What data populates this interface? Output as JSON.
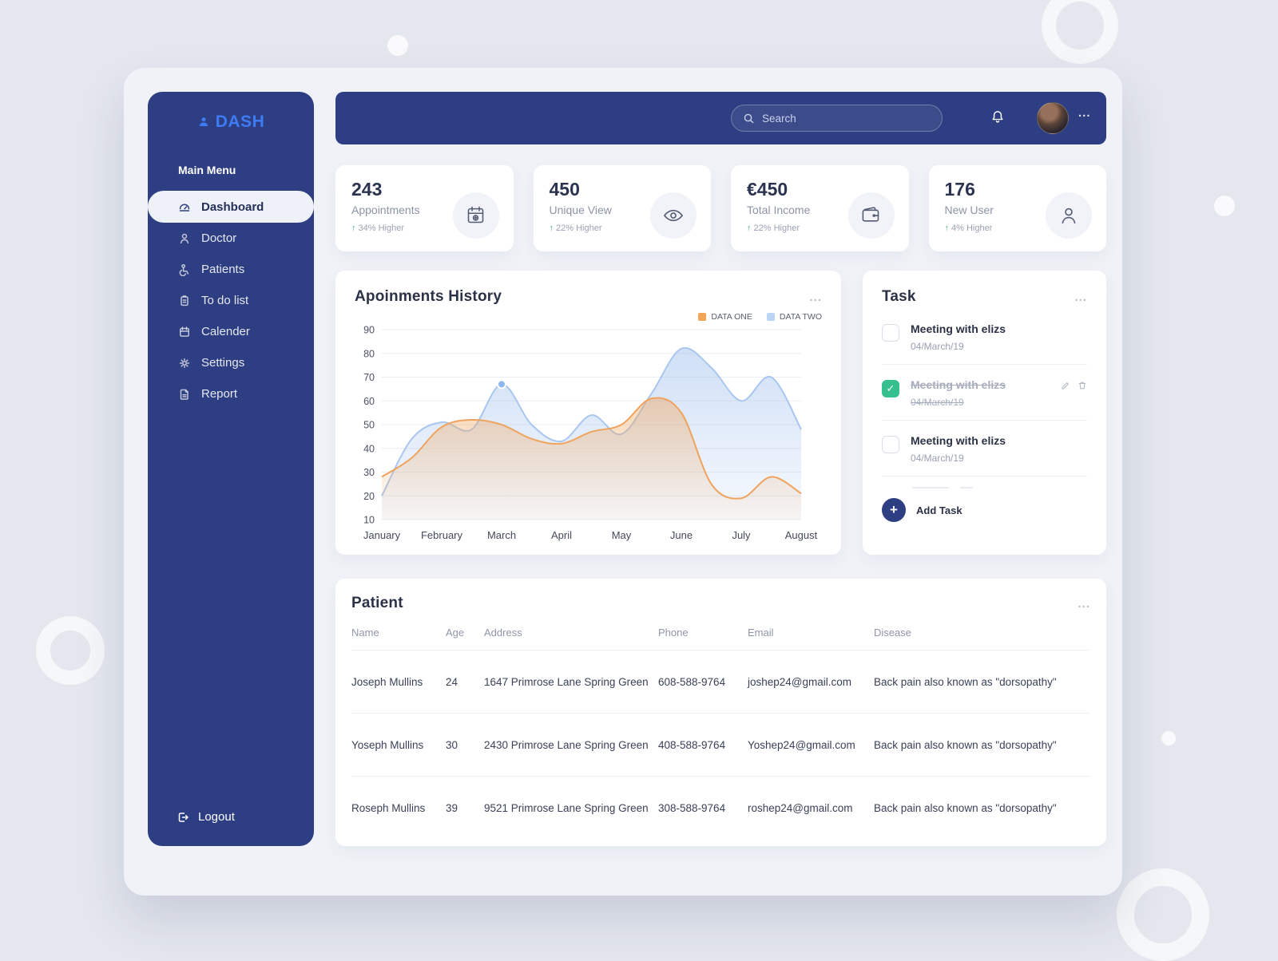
{
  "app": {
    "title": "DASH"
  },
  "icons": {
    "up_arrow": "↑",
    "ellipsis": "...",
    "check": "✓",
    "plus": "+"
  },
  "sidebar": {
    "section_label": "Main Menu",
    "items": [
      {
        "label": "Dashboard",
        "icon": "dashboard-icon",
        "active": true
      },
      {
        "label": "Doctor",
        "icon": "doctor-icon",
        "active": false
      },
      {
        "label": "Patients",
        "icon": "patients-icon",
        "active": false
      },
      {
        "label": "To do list",
        "icon": "todo-list-icon",
        "active": false
      },
      {
        "label": "Calender",
        "icon": "calendar-icon",
        "active": false
      },
      {
        "label": "Settings",
        "icon": "settings-icon",
        "active": false
      },
      {
        "label": "Report",
        "icon": "report-icon",
        "active": false
      }
    ],
    "logout_label": "Logout"
  },
  "header": {
    "search_placeholder": "Search"
  },
  "stats": [
    {
      "value": "243",
      "label": "Appointments",
      "delta": "34% Higher",
      "icon": "calendar-plus-icon"
    },
    {
      "value": "450",
      "label": "Unique View",
      "delta": "22% Higher",
      "icon": "eye-icon"
    },
    {
      "value": "€450",
      "label": "Total Income",
      "delta": "22% Higher",
      "icon": "wallet-icon"
    },
    {
      "value": "176",
      "label": "New User",
      "delta": "4% Higher",
      "icon": "user-icon"
    }
  ],
  "chart_data": {
    "type": "area",
    "title": "Apoinments History",
    "x_labels": [
      "January",
      "February",
      "March",
      "April",
      "May",
      "June",
      "July",
      "August"
    ],
    "y_ticks": [
      10,
      20,
      30,
      40,
      50,
      60,
      70,
      80,
      90
    ],
    "ylim": [
      10,
      90
    ],
    "grid": true,
    "legend_position": "top-right",
    "series": [
      {
        "name": "DATA ONE",
        "color": "#f0a35e",
        "legend_color": "#f2a556",
        "values": [
          28,
          36,
          49,
          52,
          50,
          44,
          42,
          47,
          50,
          61,
          55,
          25,
          19,
          28,
          21
        ]
      },
      {
        "name": "DATA TWO",
        "color": "#a9c6ef",
        "legend_color": "#bcd4f4",
        "values": [
          20,
          44,
          51,
          48,
          67,
          50,
          43,
          54,
          46,
          63,
          82,
          74,
          60,
          70,
          48
        ]
      }
    ],
    "marker": {
      "series": 1,
      "index": 4
    }
  },
  "tasks": {
    "title": "Task",
    "items": [
      {
        "title": "Meeting with elizs",
        "date": "04/March/19",
        "done": false
      },
      {
        "title": "Meeting with elizs",
        "date": "04/March/19",
        "done": true
      },
      {
        "title": "Meeting with elizs",
        "date": "04/March/19",
        "done": false
      }
    ],
    "add_label": "Add Task"
  },
  "patients": {
    "title": "Patient",
    "columns": [
      "Name",
      "Age",
      "Address",
      "Phone",
      "Email",
      "Disease"
    ],
    "rows": [
      [
        "Joseph Mullins",
        "24",
        "1647 Primrose Lane Spring Green",
        "608-588-9764",
        "joshep24@gmail.com",
        "Back pain also known as \"dorsopathy\""
      ],
      [
        "Yoseph Mullins",
        "30",
        "2430 Primrose Lane Spring Green",
        "408-588-9764",
        "Yoshep24@gmail.com",
        "Back pain also known as \"dorsopathy\""
      ],
      [
        "Roseph Mullins",
        "39",
        "9521 Primrose Lane Spring Green",
        "308-588-9764",
        "roshep24@gmail.com",
        "Back pain also known as \"dorsopathy\""
      ]
    ]
  }
}
